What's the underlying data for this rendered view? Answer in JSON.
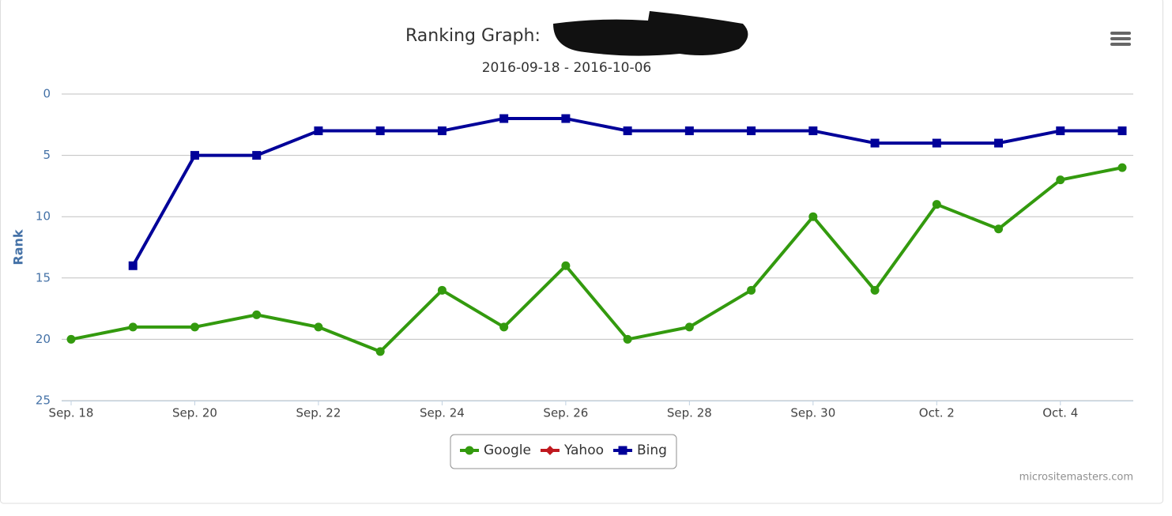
{
  "chart_data": {
    "type": "line",
    "title": "Ranking Graph:",
    "subtitle": "2016-09-18 - 2016-10-06",
    "y_label": "Rank",
    "credits": "micrositemasters.com",
    "categories": [
      "Sep. 18",
      null,
      "Sep. 20",
      null,
      "Sep. 22",
      null,
      "Sep. 24",
      null,
      "Sep. 26",
      null,
      "Sep. 28",
      null,
      "Sep. 30",
      null,
      "Oct. 2",
      null,
      "Oct. 4",
      null
    ],
    "series": [
      {
        "name": "Google",
        "color": "#339a0e",
        "marker": "circle",
        "values": [
          20,
          19,
          19,
          18,
          19,
          21,
          16,
          19,
          14,
          20,
          19,
          16,
          10,
          16,
          9,
          11,
          7,
          6
        ]
      },
      {
        "name": "Yahoo",
        "color": "#c0191f",
        "marker": "diamond",
        "values": [
          null,
          null,
          null,
          null,
          null,
          null,
          null,
          null,
          null,
          null,
          null,
          null,
          null,
          null,
          null,
          null,
          null,
          null
        ]
      },
      {
        "name": "Bing",
        "color": "#000099",
        "marker": "square",
        "values": [
          null,
          14,
          5,
          5,
          3,
          3,
          3,
          2,
          2,
          3,
          3,
          3,
          3,
          4,
          4,
          4,
          3,
          3
        ]
      }
    ],
    "ylim": [
      0,
      25
    ],
    "yticks": [
      0,
      5,
      10,
      15,
      20,
      25
    ],
    "reversed": true,
    "grid": true,
    "legend": "bottom"
  }
}
